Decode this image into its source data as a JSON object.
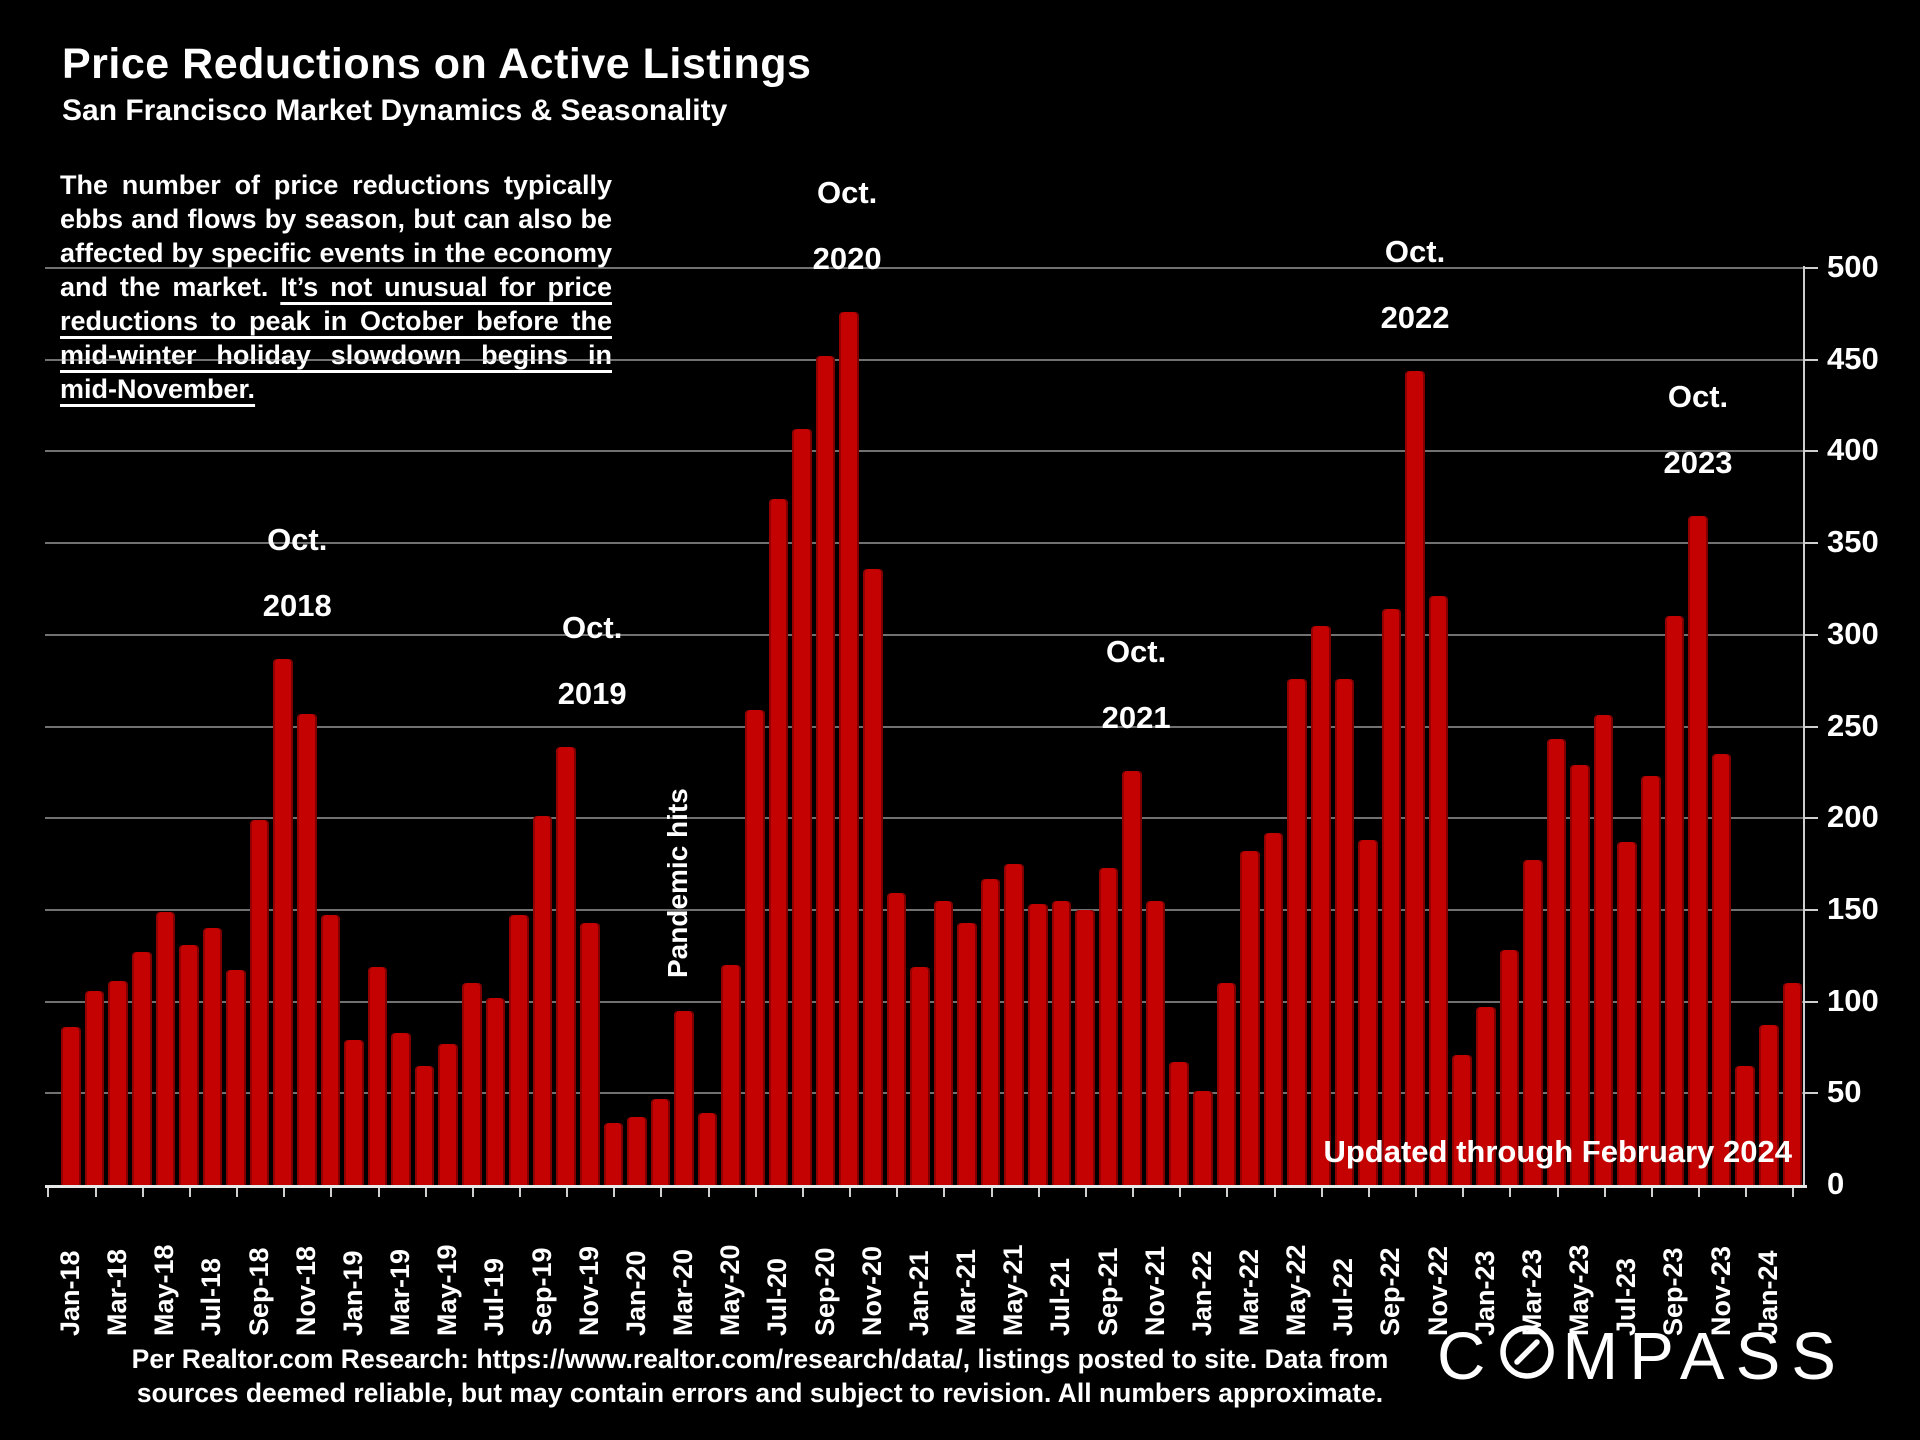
{
  "title": "Price Reductions on Active Listings",
  "subtitle": "San Francisco Market Dynamics & Seasonality",
  "intro": {
    "normal": "The number of price reductions typically ebbs and flows by season, but can also be affected by specific events in the economy and the market. ",
    "underlined": "It’s not unusual for price reductions to peak in October before the mid-winter holiday slowdown begins in mid-November."
  },
  "updated_note": "Updated through February 2024",
  "footer": {
    "line1": "Per Realtor.com Research:  https://www.realtor.com/research/data/, listings posted to site. Data from",
    "line2": "sources deemed reliable, but may contain errors and subject to revision. All numbers approximate."
  },
  "logo_text": "COMPASS",
  "colors": {
    "background": "#000000",
    "bar": "#c50202",
    "text": "#ffffff",
    "gridline": "#cdcdcd"
  },
  "chart_data": {
    "type": "bar",
    "title": "Price Reductions on Active Listings",
    "ylabel": "",
    "xlabel": "",
    "ylim": [
      0,
      500
    ],
    "ytick_step": 50,
    "yticks": [
      0,
      50,
      100,
      150,
      200,
      250,
      300,
      350,
      400,
      450,
      500
    ],
    "grid": true,
    "legend": "none",
    "x_labels_every": 2,
    "x": [
      "Jan-18",
      "Feb-18",
      "Mar-18",
      "Apr-18",
      "May-18",
      "Jun-18",
      "Jul-18",
      "Aug-18",
      "Sep-18",
      "Oct-18",
      "Nov-18",
      "Dec-18",
      "Jan-19",
      "Feb-19",
      "Mar-19",
      "Apr-19",
      "May-19",
      "Jun-19",
      "Jul-19",
      "Aug-19",
      "Sep-19",
      "Oct-19",
      "Nov-19",
      "Dec-19",
      "Jan-20",
      "Feb-20",
      "Mar-20",
      "Apr-20",
      "May-20",
      "Jun-20",
      "Jul-20",
      "Aug-20",
      "Sep-20",
      "Oct-20",
      "Nov-20",
      "Dec-20",
      "Jan-21",
      "Feb-21",
      "Mar-21",
      "Apr-21",
      "May-21",
      "Jun-21",
      "Jul-21",
      "Aug-21",
      "Sep-21",
      "Oct-21",
      "Nov-21",
      "Dec-21",
      "Jan-22",
      "Feb-22",
      "Mar-22",
      "Apr-22",
      "May-22",
      "Jun-22",
      "Jul-22",
      "Aug-22",
      "Sep-22",
      "Oct-22",
      "Nov-22",
      "Dec-22",
      "Jan-23",
      "Feb-23",
      "Mar-23",
      "Apr-23",
      "May-23",
      "Jun-23",
      "Jul-23",
      "Aug-23",
      "Sep-23",
      "Oct-23",
      "Nov-23",
      "Dec-23",
      "Jan-24",
      "Feb-24"
    ],
    "values": [
      86,
      106,
      111,
      127,
      149,
      131,
      140,
      117,
      199,
      287,
      257,
      147,
      79,
      119,
      83,
      65,
      77,
      110,
      102,
      147,
      201,
      239,
      143,
      34,
      37,
      47,
      95,
      39,
      120,
      259,
      374,
      412,
      452,
      476,
      336,
      159,
      119,
      155,
      143,
      167,
      175,
      153,
      155,
      150,
      173,
      226,
      155,
      67,
      51,
      110,
      182,
      192,
      276,
      305,
      276,
      188,
      314,
      444,
      321,
      71,
      97,
      128,
      177,
      243,
      229,
      256,
      187,
      223,
      310,
      365,
      235,
      65,
      87,
      110
    ],
    "annotations": [
      {
        "line1": "Oct.",
        "line2": "2018",
        "month": "Oct-18"
      },
      {
        "line1": "Oct.",
        "line2": "2019",
        "month": "Oct-19"
      },
      {
        "line1": "Oct.",
        "line2": "2020",
        "month": "Oct-20"
      },
      {
        "line1": "Oct.",
        "line2": "2021",
        "month": "Oct-21"
      },
      {
        "line1": "Oct.",
        "line2": "2022",
        "month": "Oct-22"
      },
      {
        "line1": "Oct.",
        "line2": "2023",
        "month": "Oct-23"
      },
      {
        "text": "Pandemic hits",
        "month": "Mar-20",
        "orientation": "vertical"
      }
    ]
  }
}
